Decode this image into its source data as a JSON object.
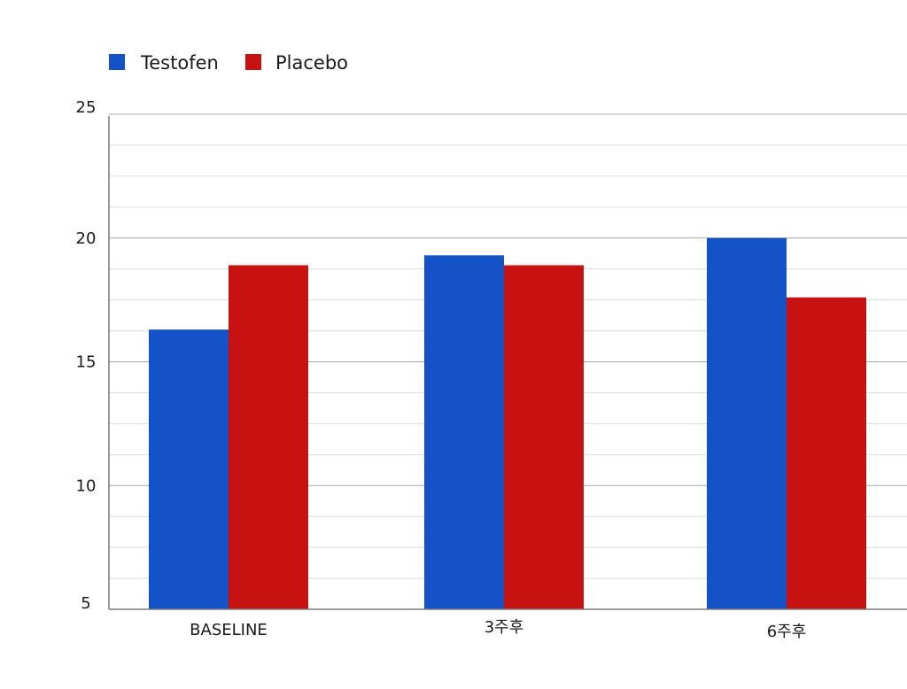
{
  "chart_data": {
    "type": "bar",
    "categories": [
      "BASELINE",
      "3주후",
      "6주후"
    ],
    "series": [
      {
        "name": "Testofen",
        "values": [
          16.3,
          19.3,
          20.0
        ],
        "color": "#1352c7"
      },
      {
        "name": "Placebo",
        "values": [
          18.9,
          18.9,
          17.6
        ],
        "color": "#c81212"
      }
    ],
    "ylim": [
      5,
      26
    ],
    "yticks": [
      5,
      10,
      15,
      20,
      25
    ],
    "ygrid_minor_step": 1.25,
    "grid": true,
    "legend": "top-left"
  }
}
